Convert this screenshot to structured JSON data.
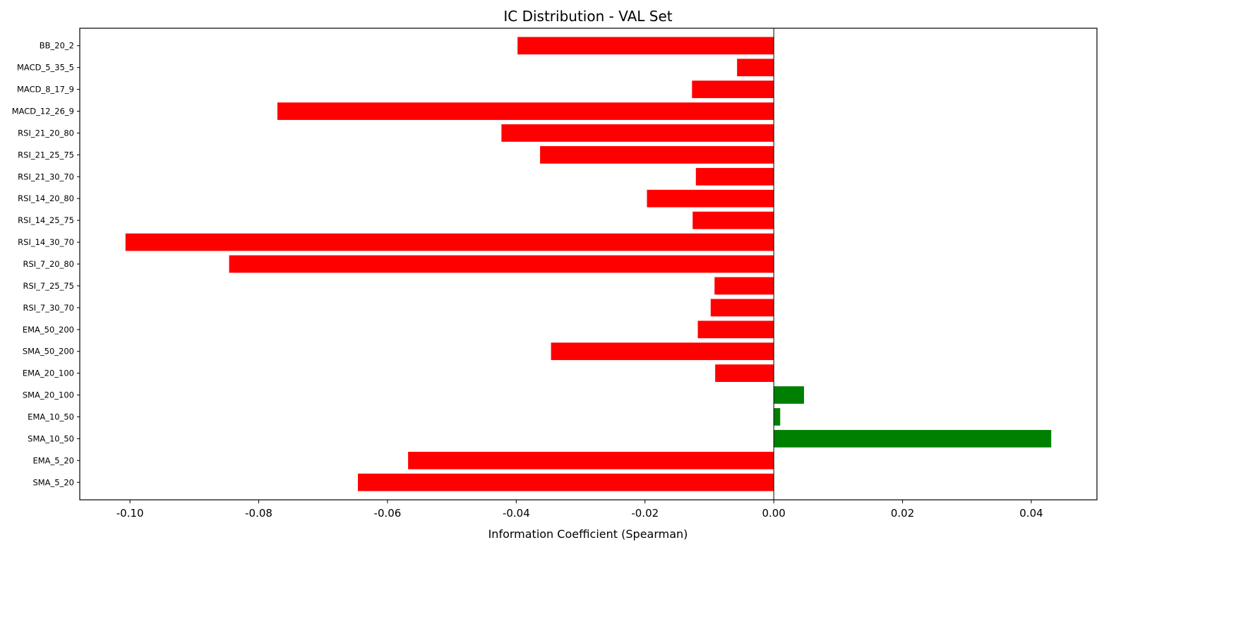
{
  "chart_data": {
    "type": "bar",
    "orientation": "horizontal",
    "title": "IC Distribution - VAL Set",
    "xlabel": "Information Coefficient (Spearman)",
    "ylabel": "",
    "xlim": [
      -0.1078,
      0.0502
    ],
    "xticks": [
      -0.1,
      -0.08,
      -0.06,
      -0.04,
      -0.02,
      0.0,
      0.02,
      0.04
    ],
    "xtick_labels": [
      "-0.10",
      "-0.08",
      "-0.06",
      "-0.04",
      "-0.02",
      "0.00",
      "0.02",
      "0.04"
    ],
    "grid": false,
    "zero_line": true,
    "colors": {
      "positive": "#008000",
      "negative": "#ff0000"
    },
    "categories": [
      "SMA_5_20",
      "EMA_5_20",
      "SMA_10_50",
      "EMA_10_50",
      "SMA_20_100",
      "EMA_20_100",
      "SMA_50_200",
      "EMA_50_200",
      "RSI_7_30_70",
      "RSI_7_25_75",
      "RSI_7_20_80",
      "RSI_14_30_70",
      "RSI_14_25_75",
      "RSI_14_20_80",
      "RSI_21_30_70",
      "RSI_21_25_75",
      "RSI_21_20_80",
      "MACD_12_26_9",
      "MACD_8_17_9",
      "MACD_5_35_5",
      "BB_20_2"
    ],
    "values": [
      -0.0646,
      -0.0568,
      0.0431,
      0.001,
      0.0047,
      -0.0091,
      -0.0346,
      -0.0118,
      -0.0098,
      -0.0092,
      -0.0846,
      -0.1007,
      -0.0126,
      -0.0197,
      -0.0121,
      -0.0363,
      -0.0423,
      -0.0771,
      -0.0127,
      -0.0057,
      -0.0398
    ]
  }
}
